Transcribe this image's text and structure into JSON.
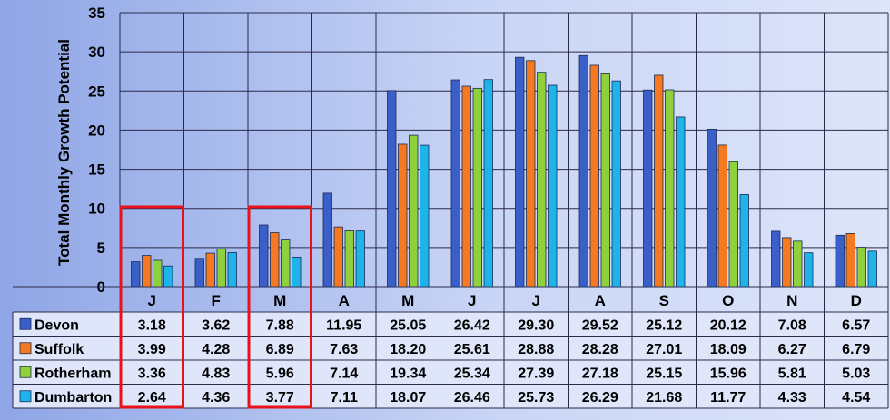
{
  "chart_data": {
    "type": "bar",
    "title": "",
    "xlabel": "",
    "ylabel": "Total Monthly Growth Potential",
    "ylim": [
      0,
      35
    ],
    "ytick_step": 5,
    "grid": true,
    "legend": "data-table-below",
    "categories": [
      "J",
      "F",
      "M",
      "A",
      "M",
      "J",
      "J",
      "A",
      "S",
      "O",
      "N",
      "D"
    ],
    "series": [
      {
        "name": "Devon",
        "color": "#3a5fc8",
        "values": [
          3.18,
          3.62,
          7.88,
          11.95,
          25.05,
          26.42,
          29.3,
          29.52,
          25.12,
          20.12,
          7.08,
          6.57
        ],
        "labels": [
          "3.18",
          "3.62",
          "7.88",
          "11.95",
          "25.05",
          "26.42",
          "29.30",
          "29.52",
          "25.12",
          "20.12",
          "7.08",
          "6.57"
        ]
      },
      {
        "name": "Suffolk",
        "color": "#f47920",
        "values": [
          3.99,
          4.28,
          6.89,
          7.63,
          18.2,
          25.61,
          28.88,
          28.28,
          27.01,
          18.09,
          6.27,
          6.79
        ],
        "labels": [
          "3.99",
          "4.28",
          "6.89",
          "7.63",
          "18.20",
          "25.61",
          "28.88",
          "28.28",
          "27.01",
          "18.09",
          "6.27",
          "6.79"
        ]
      },
      {
        "name": "Rotherham",
        "color": "#8ed13c",
        "values": [
          3.36,
          4.83,
          5.96,
          7.14,
          19.34,
          25.34,
          27.39,
          27.18,
          25.15,
          15.96,
          5.81,
          5.03
        ],
        "labels": [
          "3.36",
          "4.83",
          "5.96",
          "7.14",
          "19.34",
          "25.34",
          "27.39",
          "27.18",
          "25.15",
          "15.96",
          "5.81",
          "5.03"
        ]
      },
      {
        "name": "Dumbarton",
        "color": "#1eb4ea",
        "values": [
          2.64,
          4.36,
          3.77,
          7.11,
          18.07,
          26.46,
          25.73,
          26.29,
          21.68,
          11.77,
          4.33,
          4.54
        ],
        "labels": [
          "2.64",
          "4.36",
          "3.77",
          "7.11",
          "18.07",
          "26.46",
          "25.73",
          "26.29",
          "21.68",
          "11.77",
          "4.33",
          "4.54"
        ]
      }
    ],
    "highlighted_categories": [
      0,
      2
    ],
    "highlight_color": "#e8121b"
  }
}
